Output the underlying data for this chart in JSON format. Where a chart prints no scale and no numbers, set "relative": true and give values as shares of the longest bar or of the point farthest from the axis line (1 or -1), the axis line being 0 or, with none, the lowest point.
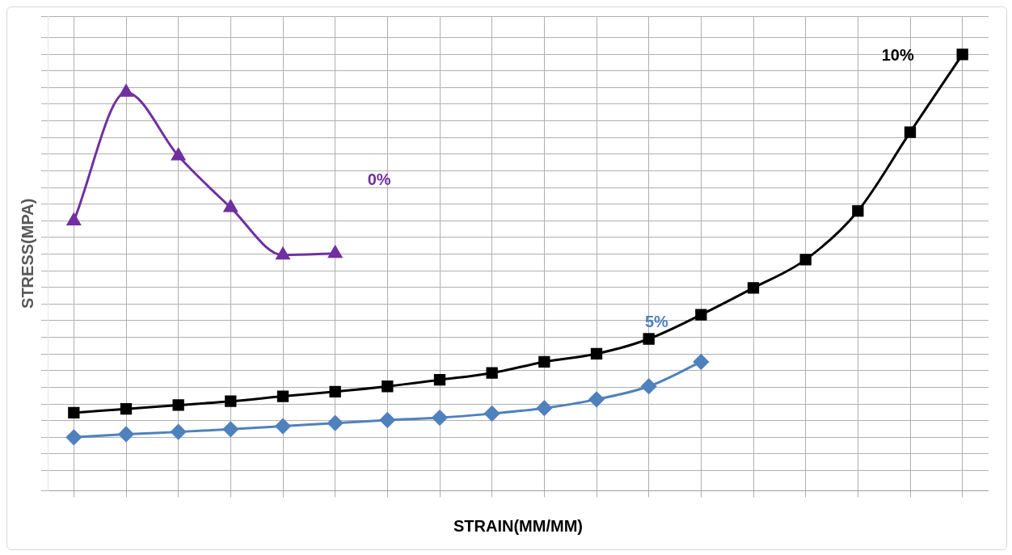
{
  "chart_data": {
    "type": "line",
    "xlabel": "STRAIN(MM/MM)",
    "ylabel": "STRESS(MPA)",
    "relative": true,
    "grid": true,
    "legend": false,
    "line_style": "solid",
    "categories": [
      null,
      null,
      null,
      null,
      null,
      null,
      null,
      null,
      null,
      null,
      null,
      null,
      null,
      null,
      null,
      null,
      null,
      null
    ],
    "series": [
      {
        "name": "0%",
        "color": "#7030a0",
        "marker": "triangle",
        "values": [
          0.565,
          0.901,
          0.735,
          0.6,
          0.476,
          0.48,
          null,
          null,
          null,
          null,
          null,
          null,
          null,
          null,
          null,
          null,
          null,
          null
        ]
      },
      {
        "name": "5%",
        "color": "#4f81bd",
        "marker": "diamond",
        "values": [
          0,
          0.008,
          0.014,
          0.021,
          0.029,
          0.037,
          0.045,
          0.051,
          0.062,
          0.076,
          0.099,
          0.133,
          0.197,
          null,
          null,
          null,
          null,
          null
        ]
      },
      {
        "name": "10%",
        "color": "#000000",
        "marker": "square",
        "values": [
          0.064,
          0.074,
          0.084,
          0.094,
          0.107,
          0.119,
          0.133,
          0.15,
          0.168,
          0.197,
          0.218,
          0.257,
          0.32,
          0.39,
          0.464,
          0.591,
          0.797,
          1.0
        ]
      }
    ]
  }
}
